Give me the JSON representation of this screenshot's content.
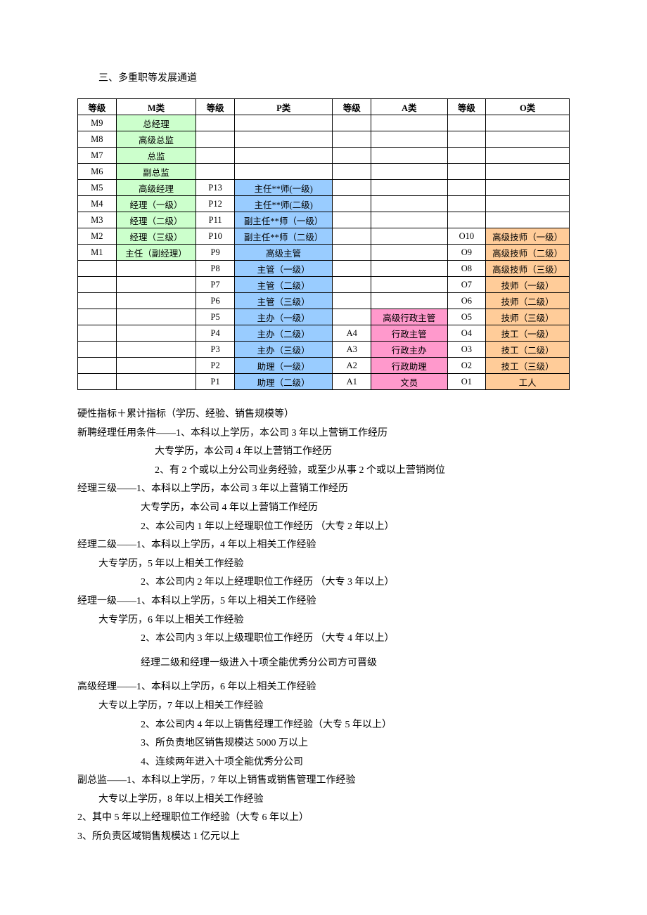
{
  "heading": "三、多重职等发展通道",
  "table": {
    "headers": [
      "等级",
      "M类",
      "等级",
      "P类",
      "等级",
      "A类",
      "等级",
      "O类"
    ],
    "colors": {
      "m": "#ccffcc",
      "p": "#99ccff",
      "a": "#ff99cc",
      "o": "#ffcc99"
    },
    "rows": [
      {
        "ml": "M9",
        "m": "总经理",
        "pl": "",
        "p": "",
        "al": "",
        "a": "",
        "ol": "",
        "o": ""
      },
      {
        "ml": "M8",
        "m": "高级总监",
        "pl": "",
        "p": "",
        "al": "",
        "a": "",
        "ol": "",
        "o": ""
      },
      {
        "ml": "M7",
        "m": "总监",
        "pl": "",
        "p": "",
        "al": "",
        "a": "",
        "ol": "",
        "o": ""
      },
      {
        "ml": "M6",
        "m": "副总监",
        "pl": "",
        "p": "",
        "al": "",
        "a": "",
        "ol": "",
        "o": ""
      },
      {
        "ml": "M5",
        "m": "高级经理",
        "pl": "P13",
        "p": "主任**师(一级)",
        "al": "",
        "a": "",
        "ol": "",
        "o": ""
      },
      {
        "ml": "M4",
        "m": "经理（一级）",
        "pl": "P12",
        "p": "主任**师(二级)",
        "al": "",
        "a": "",
        "ol": "",
        "o": ""
      },
      {
        "ml": "M3",
        "m": "经理（二级）",
        "pl": "P11",
        "p": "副主任**师（一级）",
        "al": "",
        "a": "",
        "ol": "",
        "o": ""
      },
      {
        "ml": "M2",
        "m": "经理（三级）",
        "pl": "P10",
        "p": "副主任**师（二级）",
        "al": "",
        "a": "",
        "ol": "O10",
        "o": "高级技师（一级）"
      },
      {
        "ml": "M1",
        "m": "主任（副经理）",
        "pl": "P9",
        "p": "高级主管",
        "al": "",
        "a": "",
        "ol": "O9",
        "o": "高级技师（二级）"
      },
      {
        "ml": "",
        "m": "",
        "pl": "P8",
        "p": "主管（一级）",
        "al": "",
        "a": "",
        "ol": "O8",
        "o": "高级技师（三级）"
      },
      {
        "ml": "",
        "m": "",
        "pl": "P7",
        "p": "主管（二级）",
        "al": "",
        "a": "",
        "ol": "O7",
        "o": "技师（一级）"
      },
      {
        "ml": "",
        "m": "",
        "pl": "P6",
        "p": "主管（三级）",
        "al": "",
        "a": "",
        "ol": "O6",
        "o": "技师（二级）"
      },
      {
        "ml": "",
        "m": "",
        "pl": "P5",
        "p": "主办（一级）",
        "al": "",
        "a": "高级行政主管",
        "ol": "O5",
        "o": "技师（三级）"
      },
      {
        "ml": "",
        "m": "",
        "pl": "P4",
        "p": "主办（二级）",
        "al": "A4",
        "a": "行政主管",
        "ol": "O4",
        "o": "技工（一级）"
      },
      {
        "ml": "",
        "m": "",
        "pl": "P3",
        "p": "主办（三级）",
        "al": "A3",
        "a": "行政主办",
        "ol": "O3",
        "o": "技工（二级）"
      },
      {
        "ml": "",
        "m": "",
        "pl": "P2",
        "p": "助理（一级）",
        "al": "A2",
        "a": "行政助理",
        "ol": "O2",
        "o": "技工（三级）"
      },
      {
        "ml": "",
        "m": "",
        "pl": "P1",
        "p": "助理（二级）",
        "al": "A1",
        "a": "文员",
        "ol": "O1",
        "o": "工人"
      }
    ]
  },
  "body": {
    "l1": "硬性指标＋累计指标（学历、经验、销售规模等）",
    "l2": "新聘经理任用条件——1、本科以上学历，本公司 3 年以上营销工作经历",
    "l3": "大专学历，本公司 4 年以上营销工作经历",
    "l4": "2、有 2 个或以上分公司业务经验，或至少从事 2 个或以上营销岗位",
    "l5": "经理三级——1、本科以上学历，本公司 3 年以上营销工作经历",
    "l6": "大专学历，本公司 4 年以上营销工作经历",
    "l7": "2、本公司内 1 年以上经理职位工作经历 （大专 2 年以上）",
    "l8": "经理二级——1、本科以上学历，4 年以上相关工作经验",
    "l9": "大专学历，5 年以上相关工作经验",
    "l10": "2、本公司内 2 年以上经理职位工作经历 （大专 3 年以上）",
    "l11": "经理一级——1、本科以上学历，5 年以上相关工作经验",
    "l12": "大专学历，6 年以上相关工作经验",
    "l13": "2、本公司内 3 年以上级理职位工作经历 （大专 4 年以上）",
    "l14": "经理二级和经理一级进入十项全能优秀分公司方可晋级",
    "l15": "高级经理——1、本科以上学历，6 年以上相关工作经验",
    "l16": "大专以上学历，7 年以上相关工作经验",
    "l17": "2、本公司内 4 年以上销售经理工作经验（大专 5 年以上）",
    "l18": "3、所负责地区销售规模达 5000 万以上",
    "l19": "4、连续两年进入十项全能优秀分公司",
    "l20": "副总监——1、本科以上学历，7 年以上销售或销售管理工作经验",
    "l21": "大专以上学历，8 年以上相关工作经验",
    "l22": "2、其中 5 年以上经理职位工作经验（大专 6 年以上）",
    "l23": "3、所负责区域销售规模达 1 亿元以上"
  }
}
